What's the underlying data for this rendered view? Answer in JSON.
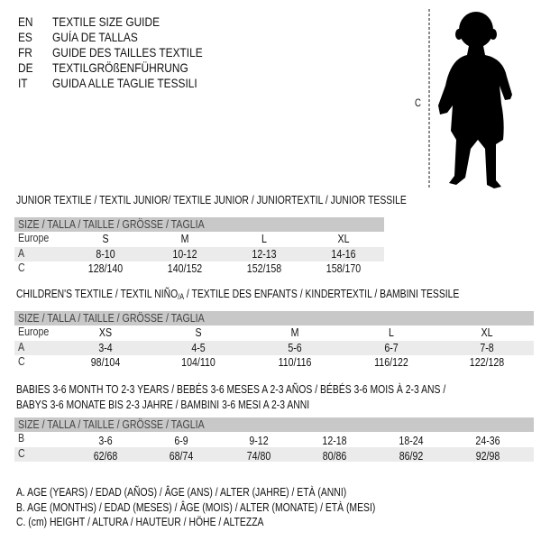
{
  "languages": [
    {
      "code": "EN",
      "text": "TEXTILE SIZE GUIDE"
    },
    {
      "code": "ES",
      "text": "GUÍA DE TALLAS"
    },
    {
      "code": "FR",
      "text": "GUIDE DES TAILLES TEXTILE"
    },
    {
      "code": "DE",
      "text": "TEXTILGRÖßENFÜHRUNG"
    },
    {
      "code": "IT",
      "text": "GUIDA ALLE TAGLIE TESSILI"
    }
  ],
  "figure": {
    "measure_label": "C"
  },
  "junior": {
    "title": "JUNIOR TEXTILE / TEXTIL JUNIOR/ TEXTILE JUNIOR / JUNIORTEXTIL / JUNIOR TESSILE",
    "header": "SIZE / TALLA / TAILLE / GRÖSSE / TAGLIA",
    "rows": [
      {
        "label": "Europe",
        "values": [
          "S",
          "M",
          "L",
          "XL"
        ]
      },
      {
        "label": "A",
        "values": [
          "8-10",
          "10-12",
          "12-13",
          "14-16"
        ]
      },
      {
        "label": "C",
        "values": [
          "128/140",
          "140/152",
          "152/158",
          "158/170"
        ]
      }
    ]
  },
  "children": {
    "title_pre": "CHILDREN'S TEXTILE / TEXTIL NIÑO",
    "title_sub": "/A",
    "title_post": " / TEXTILE DES ENFANTS / KINDERTEXTIL / BAMBINI TESSILE",
    "header": "SIZE / TALLA / TAILLE / GRÖSSE / TAGLIA",
    "rows": [
      {
        "label": "Europe",
        "values": [
          "XS",
          "S",
          "M",
          "L",
          "XL"
        ]
      },
      {
        "label": "A",
        "values": [
          "3-4",
          "4-5",
          "5-6",
          "6-7",
          "7-8"
        ]
      },
      {
        "label": "C",
        "values": [
          "98/104",
          "104/110",
          "110/116",
          "116/122",
          "122/128"
        ]
      }
    ]
  },
  "babies": {
    "title_line1": "BABIES 3-6 MONTH TO 2-3 YEARS / BEBÉS 3-6 MESES A 2-3 AÑOS / BÉBÉS 3-6 MOIS À 2-3 ANS /",
    "title_line2": "BABYS 3-6 MONATE BIS 2-3 JAHRE / BAMBINI 3-6 MESI A 2-3 ANNI",
    "header": "SIZE / TALLA / TAILLE / GRÖSSE / TAGLIA",
    "rows": [
      {
        "label": "B",
        "values": [
          "3-6",
          "6-9",
          "9-12",
          "12-18",
          "18-24",
          "24-36"
        ]
      },
      {
        "label": "C",
        "values": [
          "62/68",
          "68/74",
          "74/80",
          "80/86",
          "86/92",
          "92/98"
        ]
      }
    ]
  },
  "legend": [
    "A. AGE (YEARS) / EDAD (AÑOS) / ÂGE (ANS) / ALTER (JAHRE) / ETÀ (ANNI)",
    "B. AGE (MONTHS) / EDAD (MESES) / ÂGE (MOIS) / ALTER (MONATE) / ETÀ (MESI)",
    "C. (cm) HEIGHT / ALTURA / HAUTEUR / HÖHE / ALTEZZA"
  ]
}
